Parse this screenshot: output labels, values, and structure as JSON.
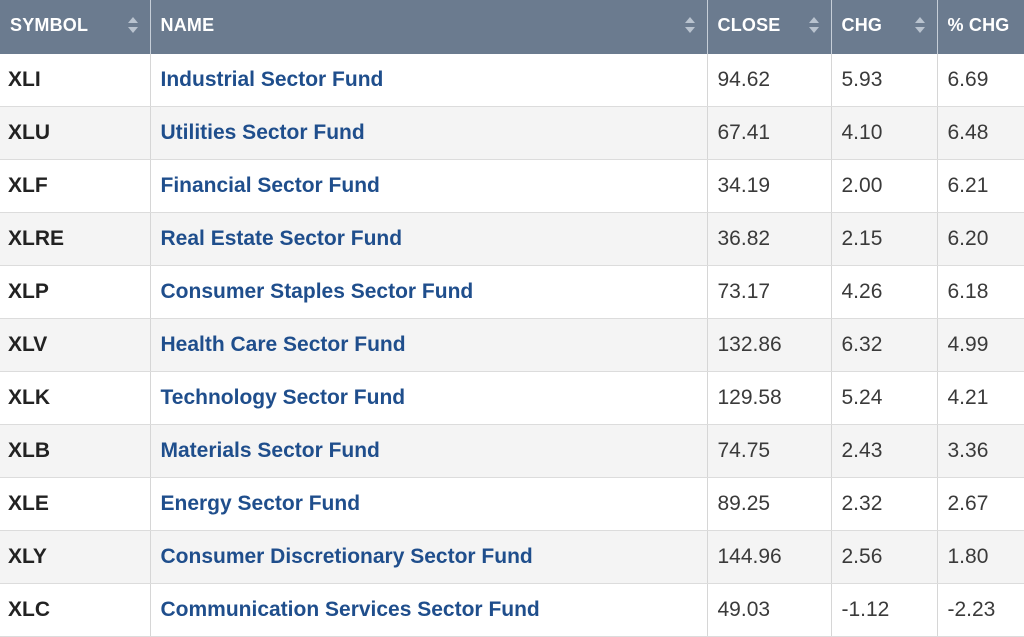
{
  "table": {
    "headers": {
      "symbol": "SYMBOL",
      "name": "NAME",
      "close": "CLOSE",
      "chg": "CHG",
      "pct_chg": "% CHG"
    },
    "rows": [
      {
        "symbol": "XLI",
        "name": "Industrial Sector Fund",
        "close": "94.62",
        "chg": "5.93",
        "pct_chg": "6.69"
      },
      {
        "symbol": "XLU",
        "name": "Utilities Sector Fund",
        "close": "67.41",
        "chg": "4.10",
        "pct_chg": "6.48"
      },
      {
        "symbol": "XLF",
        "name": "Financial Sector Fund",
        "close": "34.19",
        "chg": "2.00",
        "pct_chg": "6.21"
      },
      {
        "symbol": "XLRE",
        "name": "Real Estate Sector Fund",
        "close": "36.82",
        "chg": "2.15",
        "pct_chg": "6.20"
      },
      {
        "symbol": "XLP",
        "name": "Consumer Staples Sector Fund",
        "close": "73.17",
        "chg": "4.26",
        "pct_chg": "6.18"
      },
      {
        "symbol": "XLV",
        "name": "Health Care Sector Fund",
        "close": "132.86",
        "chg": "6.32",
        "pct_chg": "4.99"
      },
      {
        "symbol": "XLK",
        "name": "Technology Sector Fund",
        "close": "129.58",
        "chg": "5.24",
        "pct_chg": "4.21"
      },
      {
        "symbol": "XLB",
        "name": "Materials Sector Fund",
        "close": "74.75",
        "chg": "2.43",
        "pct_chg": "3.36"
      },
      {
        "symbol": "XLE",
        "name": "Energy Sector Fund",
        "close": "89.25",
        "chg": "2.32",
        "pct_chg": "2.67"
      },
      {
        "symbol": "XLY",
        "name": "Consumer Discretionary Sector Fund",
        "close": "144.96",
        "chg": "2.56",
        "pct_chg": "1.80"
      },
      {
        "symbol": "XLC",
        "name": "Communication Services Sector Fund",
        "close": "49.03",
        "chg": "-1.12",
        "pct_chg": "-2.23"
      }
    ]
  },
  "colors": {
    "header_bg": "#6b7b8f",
    "link": "#1f4e8c",
    "row_stripe": "#f4f4f4"
  }
}
